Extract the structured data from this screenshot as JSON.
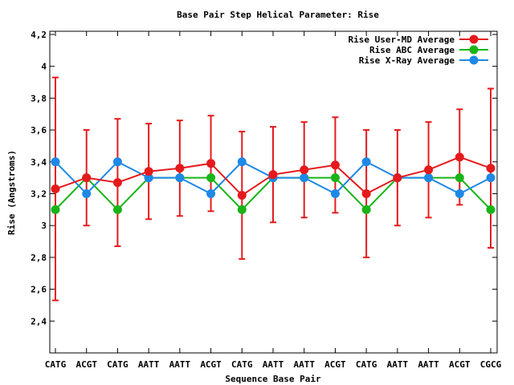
{
  "chart_data": {
    "type": "line",
    "title": "Base Pair Step Helical Parameter: Rise",
    "xlabel": "Sequence Base Pair",
    "ylabel": "Rise (Angstroms)",
    "categories": [
      "CATG",
      "ACGT",
      "CATG",
      "AATT",
      "AATT",
      "ACGT",
      "CATG",
      "AATT",
      "AATT",
      "ACGT",
      "CATG",
      "AATT",
      "AATT",
      "ACGT",
      "CGCG"
    ],
    "ylim": [
      2.2,
      4.22
    ],
    "yticks": [
      2.4,
      2.6,
      2.8,
      3,
      3.2,
      3.4,
      3.6,
      3.8,
      4,
      4.2
    ],
    "ytick_labels": [
      "2,4",
      "2,6",
      "2,8",
      "3",
      "3,2",
      "3,4",
      "3,6",
      "3,8",
      "4",
      "4,2"
    ],
    "grid": false,
    "legend_position": "top-right",
    "series": [
      {
        "name": "Rise User-MD Average",
        "color": "#e41a1c",
        "values": [
          3.23,
          3.3,
          3.27,
          3.34,
          3.36,
          3.39,
          3.19,
          3.32,
          3.35,
          3.38,
          3.2,
          3.3,
          3.35,
          3.43,
          3.36
        ],
        "err_low": [
          2.53,
          3.0,
          2.87,
          3.04,
          3.06,
          3.09,
          2.79,
          3.02,
          3.05,
          3.08,
          2.8,
          3.0,
          3.05,
          3.13,
          2.86
        ],
        "err_high": [
          3.93,
          3.6,
          3.67,
          3.64,
          3.66,
          3.69,
          3.59,
          3.62,
          3.65,
          3.68,
          3.6,
          3.6,
          3.65,
          3.73,
          3.86
        ]
      },
      {
        "name": "Rise ABC Average",
        "color": "#18b418",
        "values": [
          3.1,
          3.3,
          3.1,
          3.3,
          3.3,
          3.3,
          3.1,
          3.3,
          3.3,
          3.3,
          3.1,
          3.3,
          3.3,
          3.3,
          3.1
        ]
      },
      {
        "name": "Rise X-Ray Average",
        "color": "#1e88e5",
        "values": [
          3.4,
          3.2,
          3.4,
          3.3,
          3.3,
          3.2,
          3.4,
          3.3,
          3.3,
          3.2,
          3.4,
          3.3,
          3.3,
          3.2,
          3.3
        ]
      }
    ]
  }
}
